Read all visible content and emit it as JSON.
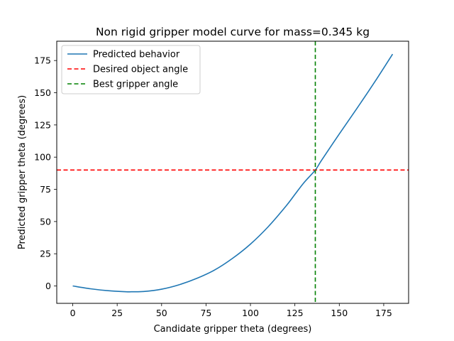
{
  "chart_data": {
    "type": "line",
    "title": "Non rigid gripper model curve for mass=0.345 kg",
    "xlabel": "Candidate gripper theta (degrees)",
    "ylabel": "Predicted gripper theta (degrees)",
    "xlim": [
      -9,
      189
    ],
    "ylim": [
      -13.5,
      190
    ],
    "xticks": [
      0,
      25,
      50,
      75,
      100,
      125,
      150,
      175
    ],
    "yticks": [
      0,
      25,
      50,
      75,
      100,
      125,
      150,
      175
    ],
    "grid": false,
    "legend_position": "upper left",
    "series": [
      {
        "name": "Predicted behavior",
        "color": "#1f77b4",
        "style": "solid",
        "x": [
          0,
          10,
          20,
          30,
          33,
          40,
          50,
          60,
          70,
          80,
          90,
          100,
          110,
          120,
          125,
          130,
          136.5,
          140,
          150,
          160,
          170,
          180
        ],
        "y": [
          0,
          -2.2,
          -3.7,
          -4.5,
          -4.5,
          -4.3,
          -2.5,
          1,
          6,
          12.5,
          21.5,
          32.5,
          46,
          62,
          71,
          80,
          90,
          97.5,
          118,
          138,
          158.5,
          180
        ]
      },
      {
        "name": "Desired object angle",
        "color": "#ff0000",
        "style": "dashed",
        "orientation": "horizontal",
        "value": 90
      },
      {
        "name": "Best gripper angle",
        "color": "#008000",
        "style": "dashed",
        "orientation": "vertical",
        "value": 136.5
      }
    ]
  }
}
